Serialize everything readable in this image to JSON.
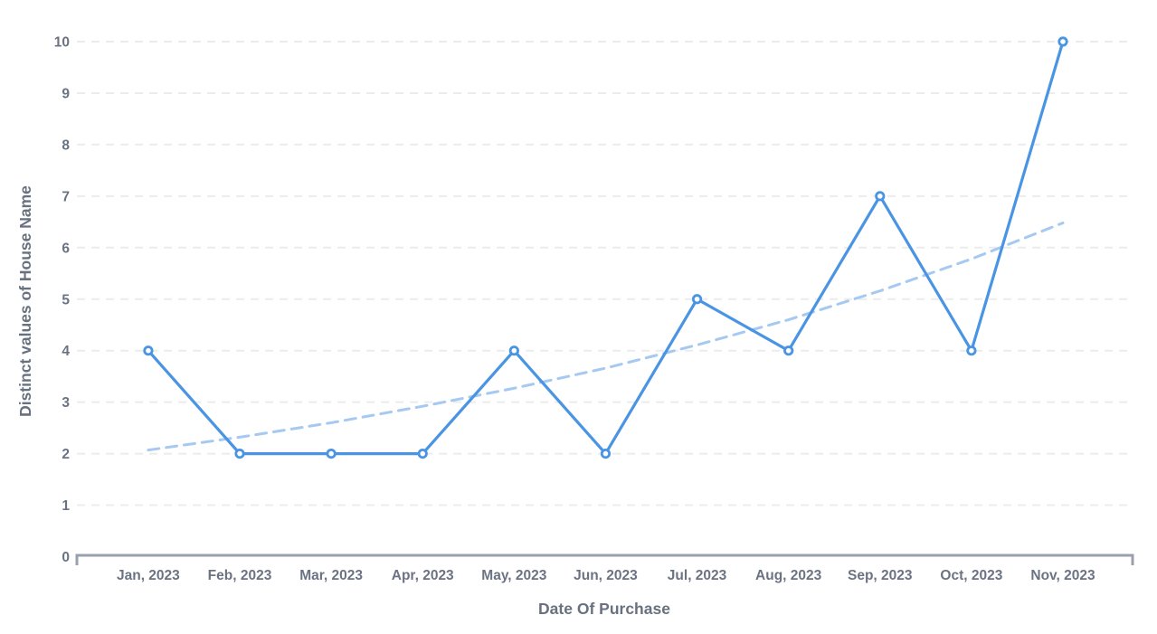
{
  "chart_data": {
    "type": "line",
    "title": "",
    "xlabel": "Date Of Purchase",
    "ylabel": "Distinct values of House Name",
    "categories": [
      "Jan, 2023",
      "Feb, 2023",
      "Mar, 2023",
      "Apr, 2023",
      "May, 2023",
      "Jun, 2023",
      "Jul, 2023",
      "Aug, 2023",
      "Sep, 2023",
      "Oct, 2023",
      "Nov, 2023"
    ],
    "values": [
      4,
      2,
      2,
      2,
      4,
      2,
      5,
      4,
      7,
      4,
      10
    ],
    "trend": {
      "shape": "exponential",
      "style": "dashed",
      "values": [
        2.07,
        2.32,
        2.6,
        2.92,
        3.27,
        3.66,
        4.11,
        4.6,
        5.16,
        5.78,
        6.48
      ]
    },
    "ylim": [
      0,
      10
    ],
    "yticks": [
      0,
      1,
      2,
      3,
      4,
      5,
      6,
      7,
      8,
      9,
      10
    ],
    "grid": "horizontal-dashed",
    "legend_position": "none",
    "marker": "open-circle",
    "colors": {
      "line": "#4a94e4",
      "marker_fill": "#ffffff",
      "trend": "#a5c9f0",
      "grid": "#ececec",
      "axis_line": "#98a0ac",
      "text": "#6b7383"
    }
  }
}
